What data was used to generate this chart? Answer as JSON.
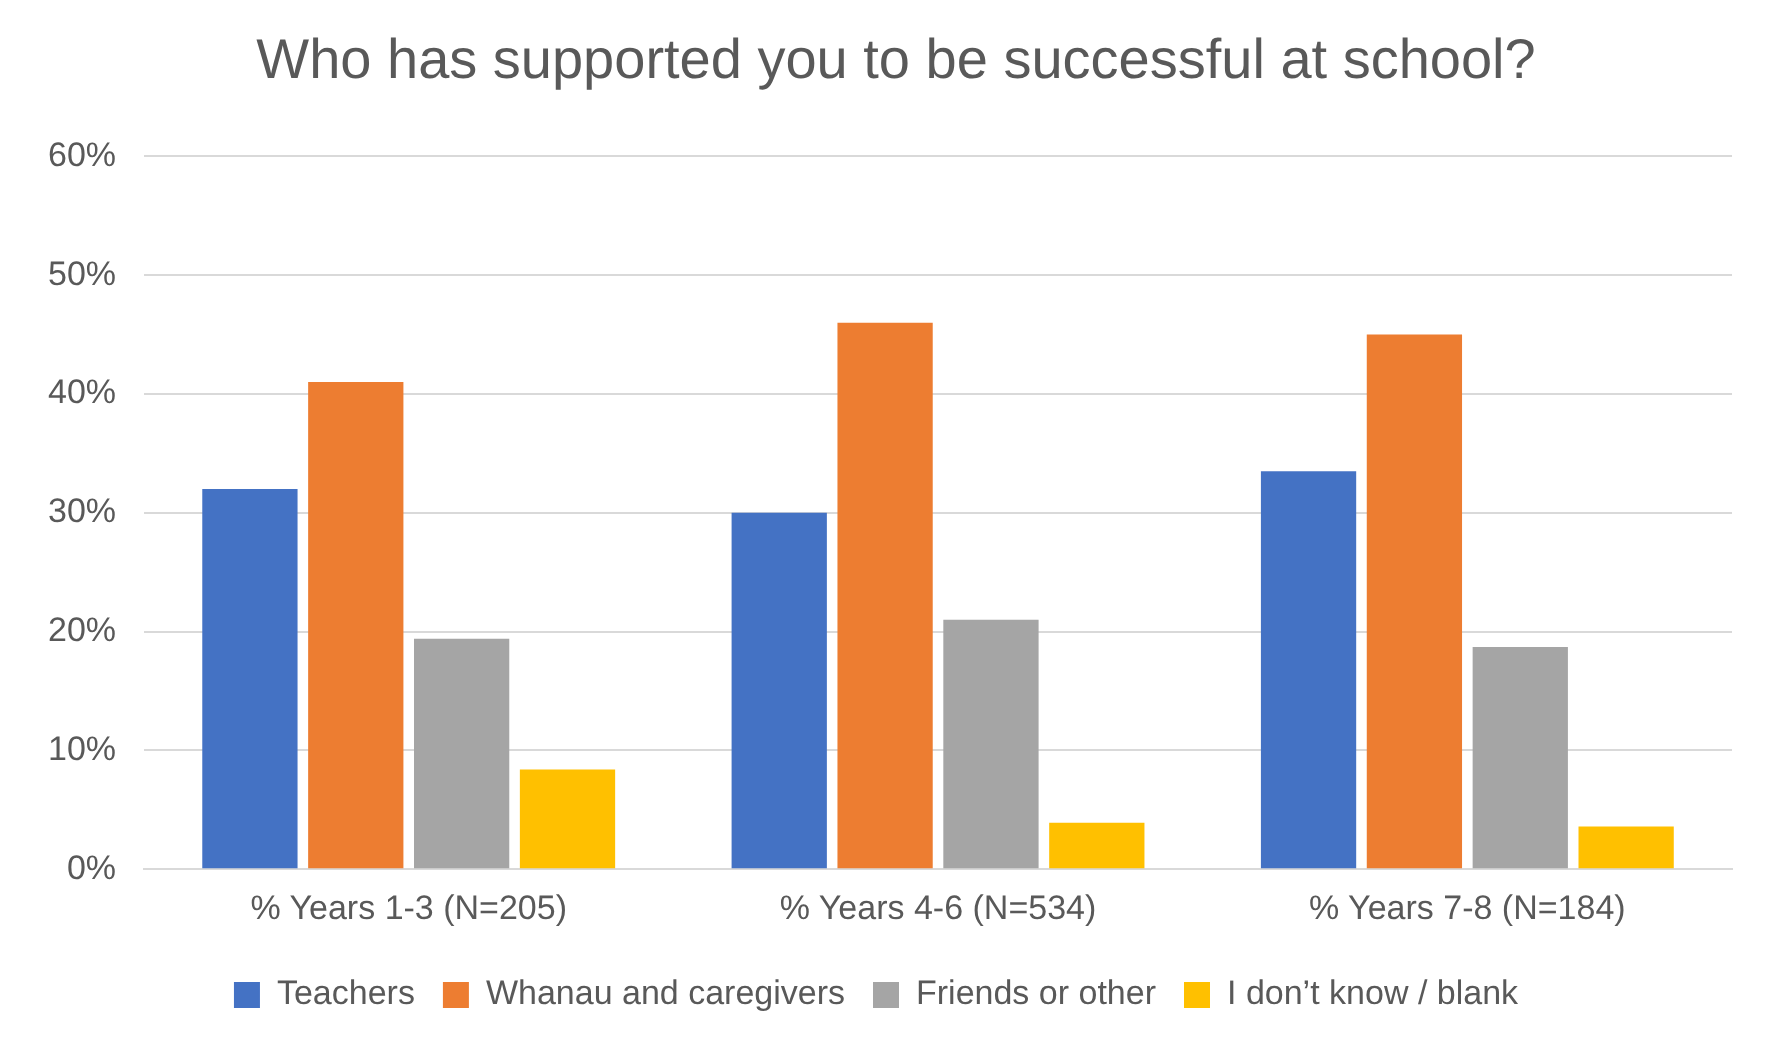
{
  "chart_data": {
    "type": "bar",
    "title": "Who has supported you to be successful at school?",
    "categories": [
      "% Years 1-3 (N=205)",
      "% Years 4-6 (N=534)",
      "% Years 7-8 (N=184)"
    ],
    "series": [
      {
        "name": "Teachers",
        "color": "#4472c4",
        "values": [
          32,
          30,
          33.5
        ]
      },
      {
        "name": "Whanau and caregivers",
        "color": "#ed7d31",
        "values": [
          41,
          46,
          45
        ]
      },
      {
        "name": "Friends or other",
        "color": "#a5a5a5",
        "values": [
          19.4,
          21,
          18.7
        ]
      },
      {
        "name": "I don’t know / blank",
        "color": "#ffc000",
        "values": [
          8.4,
          3.9,
          3.6
        ]
      }
    ],
    "ylim": [
      0,
      60
    ],
    "yticks": [
      {
        "value": 0,
        "label": "0%"
      },
      {
        "value": 10,
        "label": "10%"
      },
      {
        "value": 20,
        "label": "20%"
      },
      {
        "value": 30,
        "label": "30%"
      },
      {
        "value": 40,
        "label": "40%"
      },
      {
        "value": 50,
        "label": "50%"
      },
      {
        "value": 60,
        "label": "60%"
      }
    ],
    "grid": "y",
    "legend": "bottom"
  }
}
